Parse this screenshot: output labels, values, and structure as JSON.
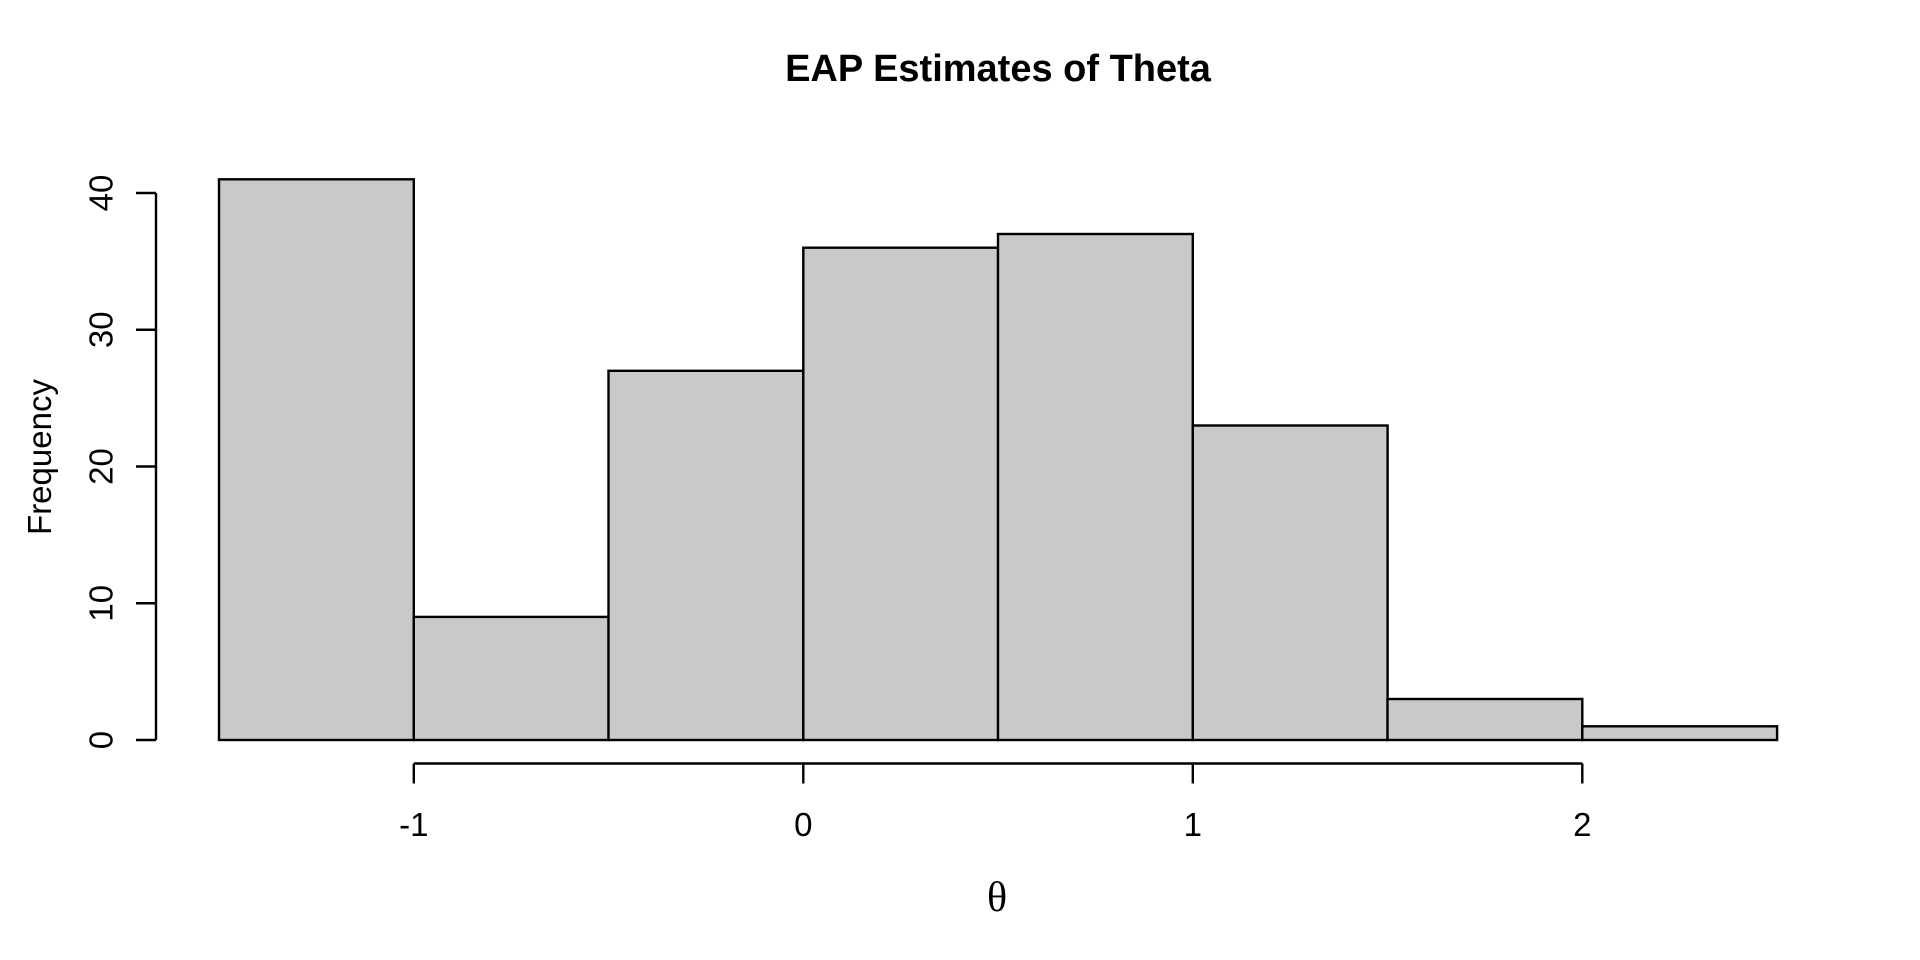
{
  "chart_data": {
    "type": "bar",
    "subtype": "histogram",
    "title": "EAP Estimates of Theta",
    "xlabel": "θ",
    "ylabel": "Frequency",
    "bin_edges": [
      -1.5,
      -1.0,
      -0.5,
      0.0,
      0.5,
      1.0,
      1.5,
      2.0,
      2.5
    ],
    "frequencies": [
      41,
      9,
      27,
      36,
      37,
      23,
      3,
      1
    ],
    "x_ticks": [
      -1,
      0,
      1,
      2
    ],
    "x_tick_labels": [
      "-1",
      "0",
      "1",
      "2"
    ],
    "y_ticks": [
      0,
      10,
      20,
      30,
      40
    ],
    "y_tick_labels": [
      "0",
      "10",
      "20",
      "30",
      "40"
    ],
    "xlim": [
      -1.5,
      2.5
    ],
    "ylim": [
      0,
      41
    ],
    "grid": false,
    "legend": "none",
    "colors": {
      "bar_fill": "#c9c9c9",
      "bar_stroke": "#000000",
      "axis": "#000000",
      "text": "#000000",
      "background": "#ffffff"
    }
  }
}
